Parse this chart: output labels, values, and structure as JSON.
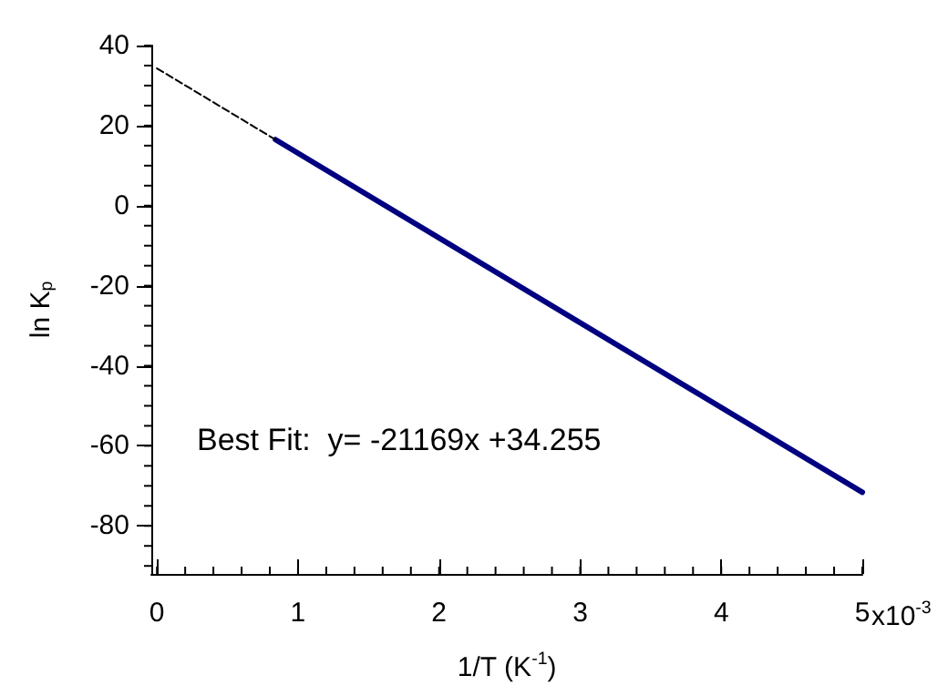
{
  "chart_data": {
    "type": "line",
    "xlabel": "1/T (K$^{-1}$)",
    "ylabel": "ln K$_{p}$",
    "xlim": [
      -0.04,
      5
    ],
    "xticks": [
      0,
      1,
      2,
      3,
      4,
      5
    ],
    "ylim": [
      -92,
      40
    ],
    "yticks": [
      -80,
      -60,
      -40,
      -20,
      0,
      20,
      40
    ],
    "series": [
      {
        "color": "#000080",
        "x": [
          0.84,
          5
        ],
        "values": [
          16.5,
          -71.6
        ],
        "line_style": "solid"
      },
      {
        "color": "#000000",
        "x": [
          0,
          0.84
        ],
        "values": [
          34.3,
          16.5
        ],
        "line_style": "dashed"
      }
    ],
    "annotations": [
      "Best Fit:  y= -21169x +34.255",
      "x10$^{-3}$"
    ],
    "grid": false,
    "marker": "none"
  }
}
